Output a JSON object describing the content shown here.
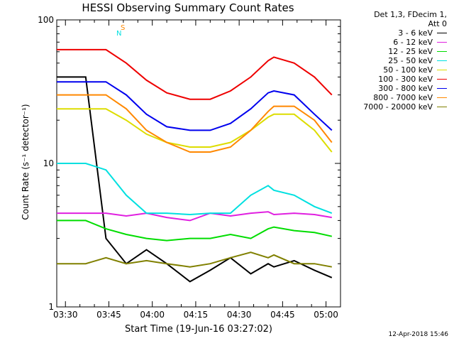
{
  "chart_data": {
    "type": "line",
    "title": "HESSI Observing Summary Count Rates",
    "xlabel": "Start Time (19-Jun-16 03:27:02)",
    "ylabel": "Count Rate (s⁻¹ detector⁻¹)",
    "yscale": "log",
    "ylim": [
      1,
      100
    ],
    "xlim_minutes_after_0327": [
      0,
      98
    ],
    "x_tick_labels": [
      "03:30",
      "03:45",
      "04:00",
      "04:15",
      "04:30",
      "04:45",
      "05:00"
    ],
    "y_tick_labels": [
      "1",
      "10",
      "100"
    ],
    "legend_header": [
      "Det 1,3, FDecim 1,",
      "Att 0"
    ],
    "series": [
      {
        "name": "3 - 6 keV",
        "color": "#000000",
        "x": [
          0,
          10,
          17,
          24,
          31,
          38,
          46,
          53,
          60,
          67,
          73,
          75,
          82,
          89,
          95
        ],
        "y": [
          40,
          40,
          3.0,
          2.0,
          2.5,
          2.0,
          1.5,
          1.8,
          2.2,
          1.7,
          2.0,
          1.9,
          2.1,
          1.8,
          1.6
        ]
      },
      {
        "name": "6 - 12 keV",
        "color": "#e020e0",
        "x": [
          0,
          10,
          17,
          24,
          31,
          38,
          46,
          53,
          60,
          67,
          73,
          75,
          82,
          89,
          95
        ],
        "y": [
          4.5,
          4.5,
          4.5,
          4.3,
          4.5,
          4.2,
          4.0,
          4.5,
          4.3,
          4.5,
          4.6,
          4.4,
          4.5,
          4.4,
          4.2
        ]
      },
      {
        "name": "12 - 25 keV",
        "color": "#00dd00",
        "x": [
          0,
          10,
          17,
          24,
          31,
          38,
          46,
          53,
          60,
          67,
          73,
          75,
          82,
          89,
          95
        ],
        "y": [
          4.0,
          4.0,
          3.5,
          3.2,
          3.0,
          2.9,
          3.0,
          3.0,
          3.2,
          3.0,
          3.5,
          3.6,
          3.4,
          3.3,
          3.1
        ]
      },
      {
        "name": "25 - 50 keV",
        "color": "#00e0e0",
        "x": [
          0,
          10,
          17,
          24,
          31,
          38,
          46,
          53,
          60,
          67,
          73,
          75,
          82,
          89,
          95
        ],
        "y": [
          10,
          10,
          9.0,
          6.0,
          4.5,
          4.5,
          4.4,
          4.5,
          4.5,
          6.0,
          7.0,
          6.5,
          6.0,
          5.0,
          4.5
        ]
      },
      {
        "name": "50 - 100 keV",
        "color": "#dddd00",
        "x": [
          0,
          10,
          17,
          24,
          31,
          38,
          46,
          53,
          60,
          67,
          73,
          75,
          82,
          89,
          95
        ],
        "y": [
          24,
          24,
          24,
          20,
          16,
          14,
          13,
          13,
          14,
          17,
          21,
          22,
          22,
          17,
          12
        ]
      },
      {
        "name": "100 - 300 keV",
        "color": "#ee0000",
        "x": [
          0,
          10,
          17,
          24,
          31,
          38,
          46,
          53,
          60,
          67,
          73,
          75,
          82,
          89,
          95
        ],
        "y": [
          62,
          62,
          62,
          50,
          38,
          31,
          28,
          28,
          32,
          40,
          52,
          55,
          50,
          40,
          30
        ]
      },
      {
        "name": "300 - 800 keV",
        "color": "#0000ee",
        "x": [
          0,
          10,
          17,
          24,
          31,
          38,
          46,
          53,
          60,
          67,
          73,
          75,
          82,
          89,
          95
        ],
        "y": [
          37,
          37,
          37,
          30,
          22,
          18,
          17,
          17,
          19,
          24,
          31,
          32,
          30,
          22,
          17
        ]
      },
      {
        "name": "800 - 7000 keV",
        "color": "#ff8800",
        "x": [
          0,
          10,
          17,
          24,
          31,
          38,
          46,
          53,
          60,
          67,
          73,
          75,
          82,
          89,
          95
        ],
        "y": [
          30,
          30,
          30,
          24,
          17,
          14,
          12,
          12,
          13,
          17,
          23,
          25,
          25,
          20,
          14
        ]
      },
      {
        "name": "7000 - 20000 keV",
        "color": "#808000",
        "x": [
          0,
          10,
          17,
          24,
          31,
          38,
          46,
          53,
          60,
          67,
          73,
          75,
          82,
          89,
          95
        ],
        "y": [
          2.0,
          2.0,
          2.2,
          2.0,
          2.1,
          2.0,
          1.9,
          2.0,
          2.2,
          2.4,
          2.2,
          2.3,
          2.0,
          2.0,
          1.9
        ]
      }
    ],
    "flag_labels": [
      {
        "text": "S",
        "color": "#ff8800"
      },
      {
        "text": "N",
        "color": "#00e0e0"
      }
    ],
    "grid": false,
    "legend_position": "right"
  },
  "timestamp": "12-Apr-2018 15:46"
}
